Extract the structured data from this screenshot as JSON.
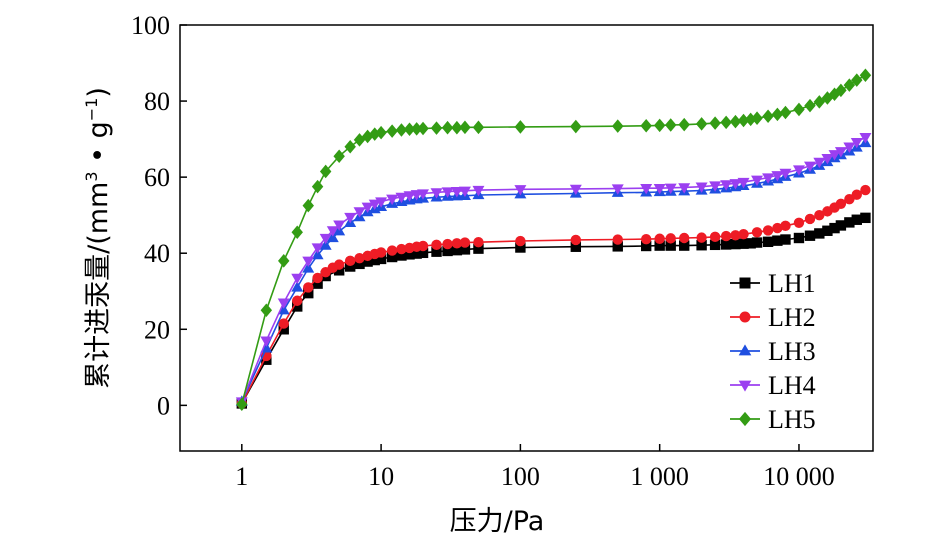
{
  "chart_data": {
    "type": "line",
    "xscale": "log",
    "xlabel": "压力/Pa",
    "ylabel_main": "累计进汞量/(mm",
    "ylabel_sup1": "3",
    "ylabel_mid": " • g",
    "ylabel_sup2": "−1",
    "ylabel_end": ")",
    "xlim": [
      0.36,
      34000
    ],
    "ylim": [
      -12,
      100
    ],
    "xticks": [
      {
        "value": 1,
        "label": "1"
      },
      {
        "value": 10,
        "label": "10"
      },
      {
        "value": 100,
        "label": "100"
      },
      {
        "value": 1000,
        "label": "1 000"
      },
      {
        "value": 10000,
        "label": "10 000"
      }
    ],
    "yticks": [
      {
        "value": 0,
        "label": "0"
      },
      {
        "value": 20,
        "label": "20"
      },
      {
        "value": 40,
        "label": "40"
      },
      {
        "value": 60,
        "label": "60"
      },
      {
        "value": 80,
        "label": "80"
      },
      {
        "value": 100,
        "label": "100"
      }
    ],
    "legend_position": "bottom-right",
    "series": [
      {
        "name": "LH1",
        "color": "#000000",
        "marker": "square",
        "points": [
          [
            1,
            0.5
          ],
          [
            1.5,
            12
          ],
          [
            2,
            20
          ],
          [
            2.5,
            26
          ],
          [
            3,
            29.5
          ],
          [
            3.5,
            32
          ],
          [
            4,
            34
          ],
          [
            5,
            35.5
          ],
          [
            6,
            36.5
          ],
          [
            7,
            37.2
          ],
          [
            8,
            37.8
          ],
          [
            9,
            38.2
          ],
          [
            10,
            38.5
          ],
          [
            12,
            39
          ],
          [
            14,
            39.4
          ],
          [
            16,
            39.7
          ],
          [
            18,
            39.9
          ],
          [
            20,
            40.1
          ],
          [
            25,
            40.4
          ],
          [
            30,
            40.6
          ],
          [
            35,
            40.8
          ],
          [
            40,
            41
          ],
          [
            50,
            41.2
          ],
          [
            100,
            41.5
          ],
          [
            250,
            41.7
          ],
          [
            500,
            41.8
          ],
          [
            800,
            41.9
          ],
          [
            1000,
            42
          ],
          [
            1200,
            42
          ],
          [
            1500,
            42
          ],
          [
            2000,
            42.1
          ],
          [
            2500,
            42.2
          ],
          [
            3000,
            42.3
          ],
          [
            3500,
            42.4
          ],
          [
            4000,
            42.5
          ],
          [
            4500,
            42.6
          ],
          [
            5000,
            42.8
          ],
          [
            6000,
            43
          ],
          [
            7000,
            43.3
          ],
          [
            8000,
            43.6
          ],
          [
            10000,
            44
          ],
          [
            12000,
            44.6
          ],
          [
            14000,
            45.2
          ],
          [
            16000,
            45.9
          ],
          [
            18000,
            46.6
          ],
          [
            20000,
            47.3
          ],
          [
            23000,
            48.1
          ],
          [
            26000,
            48.8
          ],
          [
            30000,
            49.3
          ]
        ]
      },
      {
        "name": "LH2",
        "color": "#ee1c25",
        "marker": "circle",
        "points": [
          [
            1,
            0.5
          ],
          [
            1.5,
            13
          ],
          [
            2,
            21.5
          ],
          [
            2.5,
            27.5
          ],
          [
            3,
            31
          ],
          [
            3.5,
            33.5
          ],
          [
            4,
            35
          ],
          [
            4.5,
            36.2
          ],
          [
            5,
            37
          ],
          [
            6,
            38
          ],
          [
            7,
            38.7
          ],
          [
            8,
            39.3
          ],
          [
            9,
            39.8
          ],
          [
            10,
            40.2
          ],
          [
            12,
            40.7
          ],
          [
            14,
            41.1
          ],
          [
            16,
            41.4
          ],
          [
            18,
            41.7
          ],
          [
            20,
            41.9
          ],
          [
            25,
            42.2
          ],
          [
            30,
            42.4
          ],
          [
            35,
            42.6
          ],
          [
            40,
            42.8
          ],
          [
            50,
            42.9
          ],
          [
            100,
            43.2
          ],
          [
            250,
            43.5
          ],
          [
            500,
            43.6
          ],
          [
            800,
            43.7
          ],
          [
            1000,
            43.8
          ],
          [
            1200,
            43.9
          ],
          [
            1500,
            44
          ],
          [
            2000,
            44.1
          ],
          [
            2500,
            44.3
          ],
          [
            3000,
            44.5
          ],
          [
            3500,
            44.7
          ],
          [
            4000,
            45
          ],
          [
            5000,
            45.5
          ],
          [
            6000,
            46
          ],
          [
            7000,
            46.6
          ],
          [
            8000,
            47.2
          ],
          [
            10000,
            48
          ],
          [
            12000,
            49
          ],
          [
            14000,
            50
          ],
          [
            16000,
            51
          ],
          [
            18000,
            52
          ],
          [
            20000,
            53
          ],
          [
            23000,
            54.2
          ],
          [
            26000,
            55.4
          ],
          [
            30000,
            56.6
          ]
        ]
      },
      {
        "name": "LH3",
        "color": "#1f4fe0",
        "marker": "triangle-up",
        "points": [
          [
            1,
            1
          ],
          [
            1.5,
            15
          ],
          [
            2,
            25
          ],
          [
            2.5,
            31
          ],
          [
            3,
            36
          ],
          [
            3.5,
            39.5
          ],
          [
            4,
            42
          ],
          [
            4.5,
            44
          ],
          [
            5,
            45.8
          ],
          [
            6,
            48
          ],
          [
            7,
            49.5
          ],
          [
            8,
            50.8
          ],
          [
            9,
            51.6
          ],
          [
            10,
            52.2
          ],
          [
            12,
            53
          ],
          [
            14,
            53.5
          ],
          [
            16,
            53.9
          ],
          [
            18,
            54.2
          ],
          [
            20,
            54.4
          ],
          [
            25,
            54.7
          ],
          [
            30,
            54.9
          ],
          [
            35,
            55
          ],
          [
            40,
            55.1
          ],
          [
            50,
            55.3
          ],
          [
            100,
            55.5
          ],
          [
            250,
            55.7
          ],
          [
            500,
            55.9
          ],
          [
            800,
            56
          ],
          [
            1000,
            56.1
          ],
          [
            1200,
            56.2
          ],
          [
            1500,
            56.3
          ],
          [
            2000,
            56.5
          ],
          [
            2500,
            56.8
          ],
          [
            3000,
            57.1
          ],
          [
            3500,
            57.4
          ],
          [
            4000,
            57.7
          ],
          [
            5000,
            58.3
          ],
          [
            6000,
            58.9
          ],
          [
            7000,
            59.5
          ],
          [
            8000,
            60.1
          ],
          [
            10000,
            61
          ],
          [
            12000,
            62
          ],
          [
            14000,
            63
          ],
          [
            16000,
            64
          ],
          [
            18000,
            65
          ],
          [
            20000,
            65.8
          ],
          [
            23000,
            66.8
          ],
          [
            26000,
            67.8
          ],
          [
            30000,
            69
          ]
        ]
      },
      {
        "name": "LH4",
        "color": "#9b3ff0",
        "marker": "triangle-down",
        "points": [
          [
            1,
            1
          ],
          [
            1.5,
            17
          ],
          [
            2,
            27
          ],
          [
            2.5,
            33.5
          ],
          [
            3,
            38
          ],
          [
            3.5,
            41.5
          ],
          [
            4,
            44
          ],
          [
            4.5,
            46
          ],
          [
            5,
            47.5
          ],
          [
            6,
            49.5
          ],
          [
            7,
            51
          ],
          [
            8,
            52.2
          ],
          [
            9,
            53
          ],
          [
            10,
            53.6
          ],
          [
            12,
            54.3
          ],
          [
            14,
            54.8
          ],
          [
            16,
            55.2
          ],
          [
            18,
            55.5
          ],
          [
            20,
            55.7
          ],
          [
            25,
            56
          ],
          [
            30,
            56.2
          ],
          [
            35,
            56.3
          ],
          [
            40,
            56.4
          ],
          [
            50,
            56.6
          ],
          [
            100,
            56.8
          ],
          [
            250,
            56.9
          ],
          [
            500,
            57
          ],
          [
            800,
            57.1
          ],
          [
            1000,
            57.1
          ],
          [
            1200,
            57.2
          ],
          [
            1500,
            57.3
          ],
          [
            2000,
            57.5
          ],
          [
            2500,
            57.8
          ],
          [
            3000,
            58.1
          ],
          [
            3500,
            58.4
          ],
          [
            4000,
            58.7
          ],
          [
            5000,
            59.3
          ],
          [
            6000,
            59.9
          ],
          [
            7000,
            60.5
          ],
          [
            8000,
            61.1
          ],
          [
            10000,
            62
          ],
          [
            12000,
            63
          ],
          [
            14000,
            64
          ],
          [
            16000,
            65
          ],
          [
            18000,
            66
          ],
          [
            20000,
            66.8
          ],
          [
            23000,
            68
          ],
          [
            26000,
            69.2
          ],
          [
            30000,
            70.5
          ]
        ]
      },
      {
        "name": "LH5",
        "color": "#339c14",
        "marker": "diamond",
        "points": [
          [
            1,
            0.3
          ],
          [
            1.5,
            25
          ],
          [
            2,
            38
          ],
          [
            2.5,
            45.5
          ],
          [
            3,
            52.5
          ],
          [
            3.5,
            57.5
          ],
          [
            4,
            61.5
          ],
          [
            5,
            65.5
          ],
          [
            6,
            68
          ],
          [
            7,
            69.8
          ],
          [
            8,
            70.7
          ],
          [
            9,
            71.3
          ],
          [
            10,
            71.7
          ],
          [
            12,
            72.1
          ],
          [
            14,
            72.4
          ],
          [
            16,
            72.6
          ],
          [
            18,
            72.7
          ],
          [
            20,
            72.8
          ],
          [
            25,
            72.9
          ],
          [
            30,
            73
          ],
          [
            35,
            73
          ],
          [
            40,
            73.1
          ],
          [
            50,
            73.1
          ],
          [
            100,
            73.2
          ],
          [
            250,
            73.3
          ],
          [
            500,
            73.4
          ],
          [
            800,
            73.5
          ],
          [
            1000,
            73.6
          ],
          [
            1200,
            73.7
          ],
          [
            1500,
            73.8
          ],
          [
            2000,
            74
          ],
          [
            2500,
            74.2
          ],
          [
            3000,
            74.4
          ],
          [
            3500,
            74.6
          ],
          [
            4000,
            74.9
          ],
          [
            4500,
            75.2
          ],
          [
            5000,
            75.5
          ],
          [
            6000,
            76
          ],
          [
            7000,
            76.5
          ],
          [
            8000,
            77
          ],
          [
            10000,
            77.8
          ],
          [
            12000,
            78.8
          ],
          [
            14000,
            79.8
          ],
          [
            16000,
            80.8
          ],
          [
            18000,
            81.8
          ],
          [
            20000,
            82.8
          ],
          [
            23000,
            84.2
          ],
          [
            26000,
            85.5
          ],
          [
            30000,
            86.8
          ]
        ]
      }
    ]
  }
}
